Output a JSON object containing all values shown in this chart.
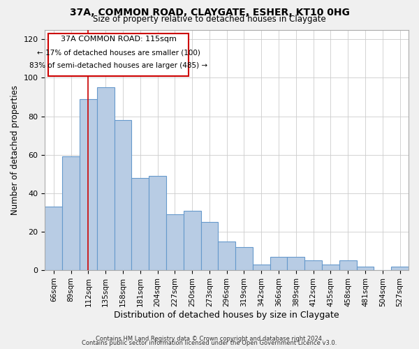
{
  "title": "37A, COMMON ROAD, CLAYGATE, ESHER, KT10 0HG",
  "subtitle": "Size of property relative to detached houses in Claygate",
  "xlabel": "Distribution of detached houses by size in Claygate",
  "ylabel": "Number of detached properties",
  "bar_labels": [
    "66sqm",
    "89sqm",
    "112sqm",
    "135sqm",
    "158sqm",
    "181sqm",
    "204sqm",
    "227sqm",
    "250sqm",
    "273sqm",
    "296sqm",
    "319sqm",
    "342sqm",
    "366sqm",
    "389sqm",
    "412sqm",
    "435sqm",
    "458sqm",
    "481sqm",
    "504sqm",
    "527sqm"
  ],
  "bar_values": [
    33,
    59,
    89,
    95,
    78,
    48,
    49,
    29,
    31,
    25,
    15,
    12,
    3,
    7,
    7,
    5,
    3,
    5,
    2,
    0,
    2
  ],
  "bar_color": "#b8cce4",
  "bar_edge_color": "#6699cc",
  "vline_x_index": 2,
  "vline_color": "#cc0000",
  "annotation_title": "37A COMMON ROAD: 115sqm",
  "annotation_line1": "← 17% of detached houses are smaller (100)",
  "annotation_line2": "83% of semi-detached houses are larger (485) →",
  "annotation_box_color": "#cc0000",
  "ylim": [
    0,
    125
  ],
  "yticks": [
    0,
    20,
    40,
    60,
    80,
    100,
    120
  ],
  "footer1": "Contains HM Land Registry data © Crown copyright and database right 2024.",
  "footer2": "Contains public sector information licensed under the Open Government Licence v3.0.",
  "bg_color": "#f0f0f0",
  "plot_bg_color": "#ffffff"
}
